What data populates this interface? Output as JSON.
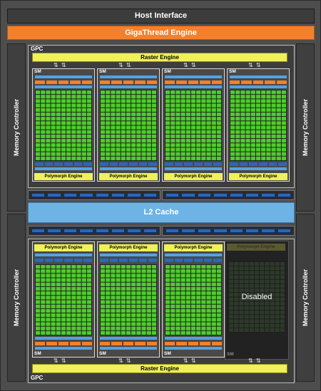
{
  "host_interface": "Host Interface",
  "gigathread_engine": "GigaThread Engine",
  "memory_controller": "Memory Controller",
  "gpc_label": "GPC",
  "raster_engine": "Raster Engine",
  "sm_label": "SM",
  "polymorph_engine": "Polymorph Engine",
  "l2_cache": "L2 Cache",
  "disabled_label": "Disabled",
  "arrows": "⇅ ⇅",
  "colors": {
    "chip_background": "#4d4d4d",
    "gigathread": "#f4802c",
    "raster_polymorph": "#f0f05a",
    "cores": "#4fcc2d",
    "cache_blue": "#55a2df",
    "l2": "#6eb3e6",
    "memory_bus": "#2a66c2",
    "orange_units": "#f4802c"
  }
}
